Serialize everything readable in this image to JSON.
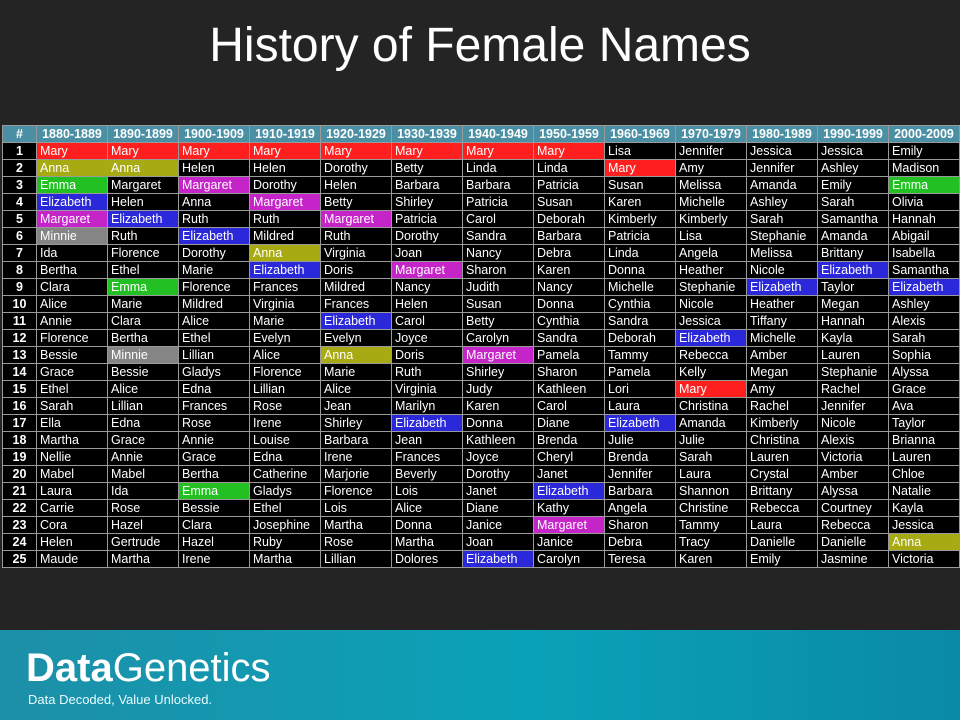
{
  "title": "History of Female Names",
  "header": [
    "#",
    "1880-1889",
    "1890-1899",
    "1900-1909",
    "1910-1919",
    "1920-1929",
    "1930-1939",
    "1940-1949",
    "1950-1959",
    "1960-1969",
    "1970-1979",
    "1980-1989",
    "1990-1999",
    "2000-2009"
  ],
  "highlight_colors": {
    "Mary": "#ff1f1f",
    "Anna": "#a8aa14",
    "Emma": "#22c022",
    "Elizabeth": "#2a28d8",
    "Margaret": "#c424c8",
    "Minnie": "#858585"
  },
  "rows": [
    {
      "rank": "1",
      "names": [
        "Mary",
        "Mary",
        "Mary",
        "Mary",
        "Mary",
        "Mary",
        "Mary",
        "Mary",
        "Lisa",
        "Jennifer",
        "Jessica",
        "Jessica",
        "Emily"
      ]
    },
    {
      "rank": "2",
      "names": [
        "Anna",
        "Anna",
        "Helen",
        "Helen",
        "Dorothy",
        "Betty",
        "Linda",
        "Linda",
        "Mary",
        "Amy",
        "Jennifer",
        "Ashley",
        "Madison"
      ]
    },
    {
      "rank": "3",
      "names": [
        "Emma",
        "Margaret",
        "Margaret",
        "Dorothy",
        "Helen",
        "Barbara",
        "Barbara",
        "Patricia",
        "Susan",
        "Melissa",
        "Amanda",
        "Emily",
        "Emma"
      ]
    },
    {
      "rank": "4",
      "names": [
        "Elizabeth",
        "Helen",
        "Anna",
        "Margaret",
        "Betty",
        "Shirley",
        "Patricia",
        "Susan",
        "Karen",
        "Michelle",
        "Ashley",
        "Sarah",
        "Olivia"
      ]
    },
    {
      "rank": "5",
      "names": [
        "Margaret",
        "Elizabeth",
        "Ruth",
        "Ruth",
        "Margaret",
        "Patricia",
        "Carol",
        "Deborah",
        "Kimberly",
        "Kimberly",
        "Sarah",
        "Samantha",
        "Hannah"
      ]
    },
    {
      "rank": "6",
      "names": [
        "Minnie",
        "Ruth",
        "Elizabeth",
        "Mildred",
        "Ruth",
        "Dorothy",
        "Sandra",
        "Barbara",
        "Patricia",
        "Lisa",
        "Stephanie",
        "Amanda",
        "Abigail"
      ]
    },
    {
      "rank": "7",
      "names": [
        "Ida",
        "Florence",
        "Dorothy",
        "Anna",
        "Virginia",
        "Joan",
        "Nancy",
        "Debra",
        "Linda",
        "Angela",
        "Melissa",
        "Brittany",
        "Isabella"
      ]
    },
    {
      "rank": "8",
      "names": [
        "Bertha",
        "Ethel",
        "Marie",
        "Elizabeth",
        "Doris",
        "Margaret",
        "Sharon",
        "Karen",
        "Donna",
        "Heather",
        "Nicole",
        "Elizabeth",
        "Samantha"
      ]
    },
    {
      "rank": "9",
      "names": [
        "Clara",
        "Emma",
        "Florence",
        "Frances",
        "Mildred",
        "Nancy",
        "Judith",
        "Nancy",
        "Michelle",
        "Stephanie",
        "Elizabeth",
        "Taylor",
        "Elizabeth"
      ]
    },
    {
      "rank": "10",
      "names": [
        "Alice",
        "Marie",
        "Mildred",
        "Virginia",
        "Frances",
        "Helen",
        "Susan",
        "Donna",
        "Cynthia",
        "Nicole",
        "Heather",
        "Megan",
        "Ashley"
      ]
    },
    {
      "rank": "11",
      "names": [
        "Annie",
        "Clara",
        "Alice",
        "Marie",
        "Elizabeth",
        "Carol",
        "Betty",
        "Cynthia",
        "Sandra",
        "Jessica",
        "Tiffany",
        "Hannah",
        "Alexis"
      ]
    },
    {
      "rank": "12",
      "names": [
        "Florence",
        "Bertha",
        "Ethel",
        "Evelyn",
        "Evelyn",
        "Joyce",
        "Carolyn",
        "Sandra",
        "Deborah",
        "Elizabeth",
        "Michelle",
        "Kayla",
        "Sarah"
      ]
    },
    {
      "rank": "13",
      "names": [
        "Bessie",
        "Minnie",
        "Lillian",
        "Alice",
        "Anna",
        "Doris",
        "Margaret",
        "Pamela",
        "Tammy",
        "Rebecca",
        "Amber",
        "Lauren",
        "Sophia"
      ]
    },
    {
      "rank": "14",
      "names": [
        "Grace",
        "Bessie",
        "Gladys",
        "Florence",
        "Marie",
        "Ruth",
        "Shirley",
        "Sharon",
        "Pamela",
        "Kelly",
        "Megan",
        "Stephanie",
        "Alyssa"
      ]
    },
    {
      "rank": "15",
      "names": [
        "Ethel",
        "Alice",
        "Edna",
        "Lillian",
        "Alice",
        "Virginia",
        "Judy",
        "Kathleen",
        "Lori",
        "Mary",
        "Amy",
        "Rachel",
        "Grace"
      ]
    },
    {
      "rank": "16",
      "names": [
        "Sarah",
        "Lillian",
        "Frances",
        "Rose",
        "Jean",
        "Marilyn",
        "Karen",
        "Carol",
        "Laura",
        "Christina",
        "Rachel",
        "Jennifer",
        "Ava"
      ]
    },
    {
      "rank": "17",
      "names": [
        "Ella",
        "Edna",
        "Rose",
        "Irene",
        "Shirley",
        "Elizabeth",
        "Donna",
        "Diane",
        "Elizabeth",
        "Amanda",
        "Kimberly",
        "Nicole",
        "Taylor"
      ]
    },
    {
      "rank": "18",
      "names": [
        "Martha",
        "Grace",
        "Annie",
        "Louise",
        "Barbara",
        "Jean",
        "Kathleen",
        "Brenda",
        "Julie",
        "Julie",
        "Christina",
        "Alexis",
        "Brianna"
      ]
    },
    {
      "rank": "19",
      "names": [
        "Nellie",
        "Annie",
        "Grace",
        "Edna",
        "Irene",
        "Frances",
        "Joyce",
        "Cheryl",
        "Brenda",
        "Sarah",
        "Lauren",
        "Victoria",
        "Lauren"
      ]
    },
    {
      "rank": "20",
      "names": [
        "Mabel",
        "Mabel",
        "Bertha",
        "Catherine",
        "Marjorie",
        "Beverly",
        "Dorothy",
        "Janet",
        "Jennifer",
        "Laura",
        "Crystal",
        "Amber",
        "Chloe"
      ]
    },
    {
      "rank": "21",
      "names": [
        "Laura",
        "Ida",
        "Emma",
        "Gladys",
        "Florence",
        "Lois",
        "Janet",
        "Elizabeth",
        "Barbara",
        "Shannon",
        "Brittany",
        "Alyssa",
        "Natalie"
      ]
    },
    {
      "rank": "22",
      "names": [
        "Carrie",
        "Rose",
        "Bessie",
        "Ethel",
        "Lois",
        "Alice",
        "Diane",
        "Kathy",
        "Angela",
        "Christine",
        "Rebecca",
        "Courtney",
        "Kayla"
      ]
    },
    {
      "rank": "23",
      "names": [
        "Cora",
        "Hazel",
        "Clara",
        "Josephine",
        "Martha",
        "Donna",
        "Janice",
        "Margaret",
        "Sharon",
        "Tammy",
        "Laura",
        "Rebecca",
        "Jessica"
      ]
    },
    {
      "rank": "24",
      "names": [
        "Helen",
        "Gertrude",
        "Hazel",
        "Ruby",
        "Rose",
        "Martha",
        "Joan",
        "Janice",
        "Debra",
        "Tracy",
        "Danielle",
        "Danielle",
        "Anna"
      ]
    },
    {
      "rank": "25",
      "names": [
        "Maude",
        "Martha",
        "Irene",
        "Martha",
        "Lillian",
        "Dolores",
        "Elizabeth",
        "Carolyn",
        "Teresa",
        "Karen",
        "Emily",
        "Jasmine",
        "Victoria"
      ]
    }
  ],
  "footer": {
    "brand_part1": "Data",
    "brand_part2": "Genetics",
    "tagline": "Data Decoded, Value Unlocked."
  }
}
